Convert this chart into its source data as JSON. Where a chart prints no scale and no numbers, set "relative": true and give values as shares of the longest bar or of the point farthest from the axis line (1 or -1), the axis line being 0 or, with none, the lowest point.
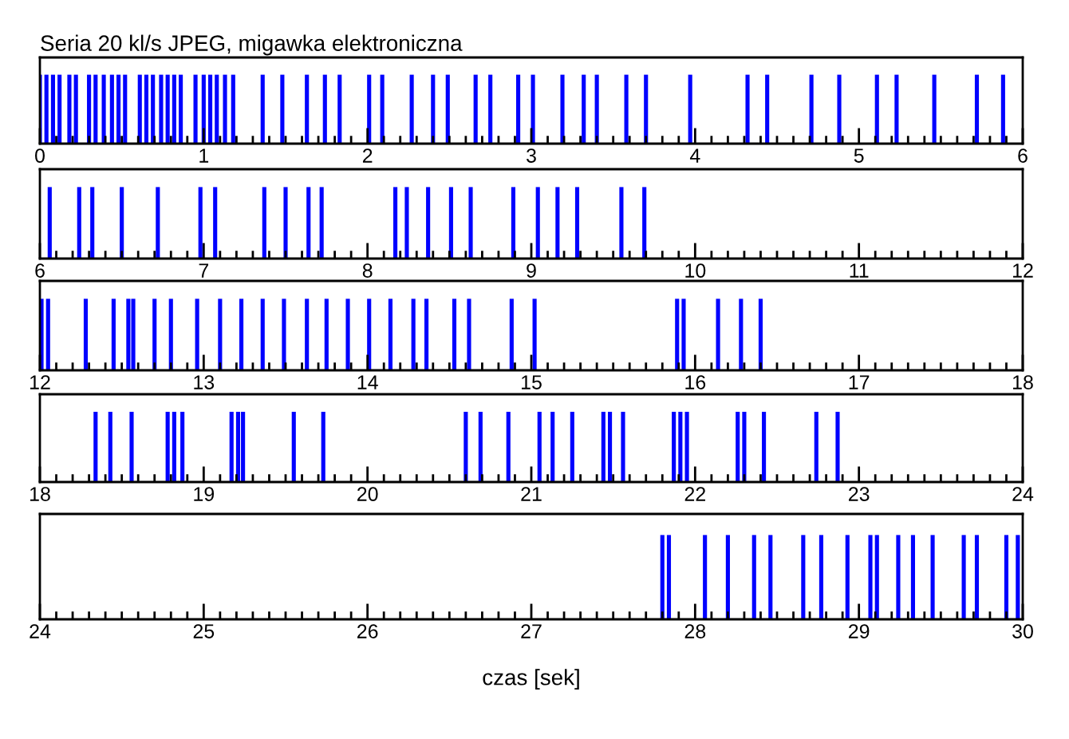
{
  "chart_data": [
    {
      "type": "bar",
      "title": "Seria 20 kl/s JPEG, migawka elektroniczna",
      "relative": true,
      "xlim": [
        0,
        6
      ],
      "xticks": [
        0,
        1,
        2,
        3,
        4,
        5,
        6
      ],
      "grid": false,
      "legend": false,
      "series": [
        {
          "color": "#0000ff",
          "x": [
            0.0,
            0.04,
            0.08,
            0.12,
            0.18,
            0.22,
            0.3,
            0.34,
            0.39,
            0.44,
            0.48,
            0.52,
            0.61,
            0.65,
            0.69,
            0.74,
            0.78,
            0.82,
            0.86,
            0.95,
            1.0,
            1.04,
            1.08,
            1.13,
            1.18,
            1.36,
            1.48,
            1.63,
            1.74,
            1.83,
            2.01,
            2.09,
            2.27,
            2.4,
            2.49,
            2.66,
            2.75,
            2.92,
            3.01,
            3.19,
            3.32,
            3.4,
            3.58,
            3.7,
            3.97,
            4.32,
            4.44,
            4.71,
            4.88,
            5.11,
            5.23,
            5.46,
            5.72,
            5.88
          ],
          "values": [
            1,
            1,
            1,
            1,
            1,
            1,
            1,
            1,
            1,
            1,
            1,
            1,
            1,
            1,
            1,
            1,
            1,
            1,
            1,
            1,
            1,
            1,
            1,
            1,
            1,
            1,
            1,
            1,
            1,
            1,
            1,
            1,
            1,
            1,
            1,
            1,
            1,
            1,
            1,
            1,
            1,
            1,
            1,
            1,
            1,
            1,
            1,
            1,
            1,
            1,
            1,
            1,
            1,
            1
          ]
        }
      ]
    },
    {
      "type": "bar",
      "relative": true,
      "xlim": [
        6,
        12
      ],
      "xticks": [
        6,
        7,
        8,
        9,
        10,
        11,
        12
      ],
      "grid": false,
      "legend": false,
      "series": [
        {
          "color": "#0000ff",
          "x": [
            6.06,
            6.24,
            6.32,
            6.5,
            6.72,
            6.98,
            7.07,
            7.37,
            7.5,
            7.64,
            7.72,
            8.17,
            8.24,
            8.37,
            8.51,
            8.63,
            8.89,
            9.04,
            9.16,
            9.28,
            9.55,
            9.69
          ],
          "values": [
            1,
            1,
            1,
            1,
            1,
            1,
            1,
            1,
            1,
            1,
            1,
            1,
            1,
            1,
            1,
            1,
            1,
            1,
            1,
            1,
            1,
            1
          ]
        }
      ]
    },
    {
      "type": "bar",
      "relative": true,
      "xlim": [
        12,
        18
      ],
      "xticks": [
        12,
        13,
        14,
        15,
        16,
        17,
        18
      ],
      "grid": false,
      "legend": false,
      "series": [
        {
          "color": "#0000ff",
          "x": [
            12.01,
            12.05,
            12.28,
            12.45,
            12.54,
            12.57,
            12.7,
            12.8,
            12.96,
            13.1,
            13.23,
            13.36,
            13.49,
            13.63,
            13.75,
            13.88,
            14.01,
            14.14,
            14.28,
            14.36,
            14.53,
            14.62,
            14.88,
            15.02,
            15.89,
            15.93,
            16.14,
            16.28,
            16.4
          ],
          "values": [
            1,
            1,
            1,
            1,
            1,
            1,
            1,
            1,
            1,
            1,
            1,
            1,
            1,
            1,
            1,
            1,
            1,
            1,
            1,
            1,
            1,
            1,
            1,
            1,
            1,
            1,
            1,
            1,
            1
          ]
        }
      ]
    },
    {
      "type": "bar",
      "relative": true,
      "xlim": [
        18,
        24
      ],
      "xticks": [
        18,
        19,
        20,
        21,
        22,
        23,
        24
      ],
      "grid": false,
      "legend": false,
      "series": [
        {
          "color": "#0000ff",
          "x": [
            18.34,
            18.43,
            18.56,
            18.78,
            18.82,
            18.87,
            19.17,
            19.21,
            19.24,
            19.55,
            19.73,
            20.6,
            20.69,
            20.86,
            21.05,
            21.13,
            21.25,
            21.44,
            21.48,
            21.56,
            21.87,
            21.91,
            21.95,
            22.26,
            22.3,
            22.42,
            22.74,
            22.87
          ],
          "values": [
            1,
            1,
            1,
            1,
            1,
            1,
            1,
            1,
            1,
            1,
            1,
            1,
            1,
            1,
            1,
            1,
            1,
            1,
            1,
            1,
            1,
            1,
            1,
            1,
            1,
            1,
            1,
            1
          ]
        }
      ]
    },
    {
      "type": "bar",
      "relative": true,
      "xlim": [
        24,
        30
      ],
      "xticks": [
        24,
        25,
        26,
        27,
        28,
        29,
        30
      ],
      "xlabel": "czas [sek]",
      "grid": false,
      "legend": false,
      "series": [
        {
          "color": "#0000ff",
          "x": [
            27.8,
            27.84,
            28.06,
            28.2,
            28.36,
            28.46,
            28.66,
            28.77,
            28.93,
            29.07,
            29.11,
            29.24,
            29.33,
            29.45,
            29.64,
            29.72,
            29.9,
            29.97
          ],
          "values": [
            1,
            1,
            1,
            1,
            1,
            1,
            1,
            1,
            1,
            1,
            1,
            1,
            1,
            1,
            1,
            1,
            1,
            1
          ]
        }
      ]
    }
  ]
}
